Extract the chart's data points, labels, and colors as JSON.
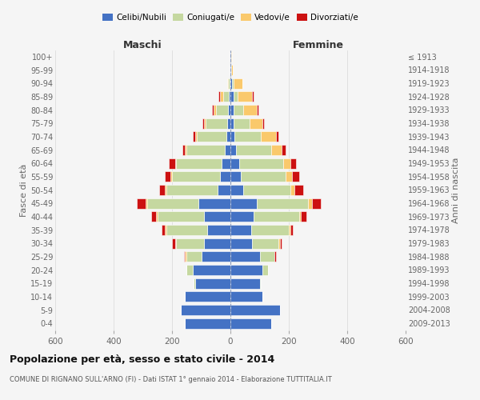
{
  "age_groups": [
    "0-4",
    "5-9",
    "10-14",
    "15-19",
    "20-24",
    "25-29",
    "30-34",
    "35-39",
    "40-44",
    "45-49",
    "50-54",
    "55-59",
    "60-64",
    "65-69",
    "70-74",
    "75-79",
    "80-84",
    "85-89",
    "90-94",
    "95-99",
    "100+"
  ],
  "birth_years": [
    "2009-2013",
    "2004-2008",
    "1999-2003",
    "1994-1998",
    "1989-1993",
    "1984-1988",
    "1979-1983",
    "1974-1978",
    "1969-1973",
    "1964-1968",
    "1959-1963",
    "1954-1958",
    "1949-1953",
    "1944-1948",
    "1939-1943",
    "1934-1938",
    "1929-1933",
    "1924-1928",
    "1919-1923",
    "1914-1918",
    "≤ 1913"
  ],
  "male_celibi": [
    155,
    170,
    155,
    120,
    130,
    100,
    90,
    80,
    90,
    110,
    45,
    35,
    30,
    20,
    15,
    10,
    8,
    5,
    2,
    2,
    2
  ],
  "male_coniugati": [
    0,
    0,
    0,
    5,
    20,
    50,
    95,
    140,
    160,
    175,
    175,
    165,
    155,
    130,
    100,
    75,
    40,
    20,
    5,
    0,
    0
  ],
  "male_vedovi": [
    0,
    0,
    0,
    0,
    0,
    5,
    5,
    5,
    5,
    5,
    5,
    5,
    5,
    5,
    5,
    5,
    10,
    10,
    5,
    0,
    0
  ],
  "male_divorziati": [
    0,
    0,
    0,
    0,
    0,
    5,
    10,
    10,
    15,
    30,
    20,
    20,
    20,
    10,
    10,
    5,
    5,
    5,
    0,
    0,
    0
  ],
  "female_celibi": [
    140,
    170,
    110,
    100,
    110,
    100,
    75,
    70,
    80,
    90,
    45,
    35,
    30,
    20,
    15,
    10,
    10,
    10,
    5,
    2,
    2
  ],
  "female_coniugati": [
    0,
    0,
    0,
    5,
    20,
    50,
    90,
    130,
    155,
    175,
    160,
    155,
    150,
    120,
    90,
    55,
    35,
    15,
    5,
    0,
    0
  ],
  "female_vedovi": [
    0,
    0,
    0,
    0,
    0,
    0,
    5,
    5,
    5,
    15,
    15,
    20,
    25,
    35,
    50,
    45,
    45,
    50,
    30,
    5,
    3
  ],
  "female_divorziati": [
    0,
    0,
    0,
    0,
    0,
    5,
    5,
    10,
    20,
    30,
    30,
    25,
    20,
    15,
    10,
    5,
    5,
    5,
    0,
    0,
    0
  ],
  "colors": {
    "celibi": "#4472c4",
    "coniugati": "#c5d8a0",
    "vedovi": "#fac96c",
    "divorziati": "#cc1111"
  },
  "xlim": 600,
  "title": "Popolazione per età, sesso e stato civile - 2014",
  "subtitle": "COMUNE DI RIGNANO SULL'ARNO (FI) - Dati ISTAT 1° gennaio 2014 - Elaborazione TUTTITALIA.IT",
  "ylabel_left": "Fasce di età",
  "ylabel_right": "Anni di nascita",
  "label_maschi": "Maschi",
  "label_femmine": "Femmine",
  "legend_labels": [
    "Celibi/Nubili",
    "Coniugati/e",
    "Vedovi/e",
    "Divorziati/e"
  ],
  "bg_color": "#f5f5f5"
}
